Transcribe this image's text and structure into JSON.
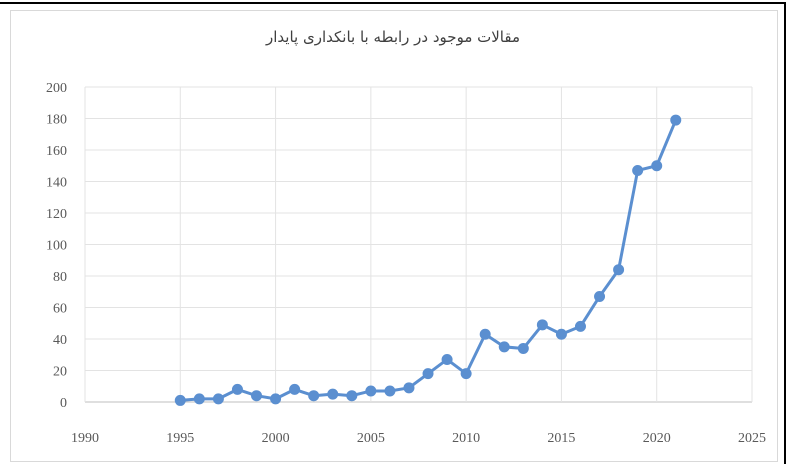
{
  "chart_data": {
    "type": "line",
    "title": "مقالات موجود در رابطه با بانکداری پایدار",
    "xlabel": "",
    "ylabel": "",
    "xlim": [
      1990,
      2025
    ],
    "ylim": [
      0,
      200
    ],
    "x_ticks": [
      "1990",
      "1995",
      "2000",
      "2005",
      "2010",
      "2015",
      "2020",
      "2025"
    ],
    "y_ticks": [
      "0",
      "20",
      "40",
      "60",
      "80",
      "100",
      "120",
      "140",
      "160",
      "180",
      "200"
    ],
    "grid": true,
    "legend": "none",
    "series": [
      {
        "color": "#5b8fd0",
        "x": [
          1995,
          1996,
          1997,
          1998,
          1999,
          2000,
          2001,
          2002,
          2003,
          2004,
          2005,
          2006,
          2007,
          2008,
          2009,
          2010,
          2011,
          2012,
          2013,
          2014,
          2015,
          2016,
          2017,
          2018,
          2019,
          2020,
          2021
        ],
        "y": [
          1,
          2,
          2,
          8,
          4,
          2,
          8,
          4,
          5,
          4,
          7,
          7,
          9,
          18,
          27,
          18,
          43,
          35,
          34,
          49,
          43,
          48,
          67,
          84,
          147,
          150,
          179
        ]
      }
    ]
  }
}
